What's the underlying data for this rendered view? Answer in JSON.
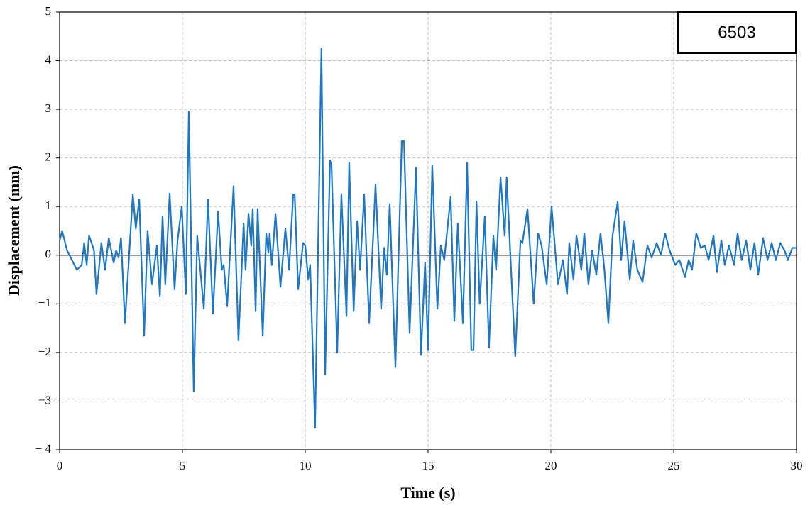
{
  "chart_data": {
    "type": "line",
    "annotation": "6503",
    "xlabel": "Time (s)",
    "ylabel": "Displacement (mm)",
    "xlim": [
      0,
      30
    ],
    "xticks": [
      0,
      5,
      10,
      15,
      20,
      25,
      30
    ],
    "ylim": [
      -4,
      5
    ],
    "yticks": [
      {
        "value": -4,
        "label": "− 4"
      },
      {
        "value": -3,
        "label": "−3"
      },
      {
        "value": -2,
        "label": "−2"
      },
      {
        "value": -1,
        "label": "−1"
      },
      0,
      1,
      2,
      3,
      4,
      5
    ],
    "grid": true,
    "series": [
      {
        "name": "6503",
        "color": "#1f77c4",
        "x": [
          0,
          0.1,
          0.3,
          0.7,
          0.9,
          1.0,
          1.1,
          1.2,
          1.4,
          1.5,
          1.7,
          1.85,
          2.0,
          2.2,
          2.3,
          2.4,
          2.5,
          2.66,
          2.98,
          3.1,
          3.24,
          3.44,
          3.58,
          3.76,
          3.96,
          4.08,
          4.19,
          4.3,
          4.48,
          4.68,
          4.8,
          4.97,
          5.14,
          5.26,
          5.46,
          5.6,
          5.87,
          6.04,
          6.24,
          6.45,
          6.6,
          6.68,
          6.82,
          7.08,
          7.28,
          7.49,
          7.57,
          7.69,
          7.8,
          7.86,
          7.98,
          8.06,
          8.27,
          8.41,
          8.5,
          8.55,
          8.64,
          8.79,
          8.99,
          9.19,
          9.34,
          9.51,
          9.57,
          9.71,
          9.91,
          10.0,
          10.12,
          10.2,
          10.4,
          10.66,
          10.81,
          11.01,
          11.07,
          11.3,
          11.47,
          11.68,
          11.79,
          11.97,
          12.11,
          12.23,
          12.4,
          12.6,
          12.86,
          13.09,
          13.21,
          13.32,
          13.44,
          13.67,
          13.93,
          14.02,
          14.25,
          14.51,
          14.71,
          14.88,
          15.0,
          15.17,
          15.38,
          15.52,
          15.66,
          15.92,
          16.07,
          16.21,
          16.42,
          16.59,
          16.76,
          16.85,
          16.97,
          17.1,
          17.31,
          17.48,
          17.66,
          17.77,
          17.95,
          18.12,
          18.2,
          18.55,
          18.76,
          18.84,
          19.05,
          19.3,
          19.48,
          19.62,
          19.83,
          20.03,
          20.29,
          20.49,
          20.66,
          20.75,
          20.92,
          21.04,
          21.24,
          21.36,
          21.53,
          21.68,
          21.85,
          22.02,
          22.17,
          22.34,
          22.51,
          22.72,
          22.86,
          23.0,
          23.21,
          23.35,
          23.52,
          23.73,
          23.93,
          24.1,
          24.31,
          24.48,
          24.65,
          24.83,
          25.06,
          25.23,
          25.46,
          25.61,
          25.75,
          25.92,
          26.1,
          26.27,
          26.42,
          26.62,
          26.76,
          26.94,
          27.08,
          27.25,
          27.46,
          27.6,
          27.77,
          27.95,
          28.12,
          28.29,
          28.44,
          28.64,
          28.82,
          28.99,
          29.16,
          29.34,
          29.51,
          29.65,
          29.83,
          30.0
        ],
        "values": [
          0.3,
          0.5,
          0.1,
          -0.3,
          -0.2,
          0.25,
          -0.2,
          0.4,
          0.1,
          -0.8,
          0.25,
          -0.3,
          0.35,
          -0.15,
          0.1,
          -0.05,
          0.35,
          -1.4,
          1.25,
          0.55,
          1.15,
          -1.65,
          0.5,
          -0.6,
          0.2,
          -0.85,
          0.8,
          -0.6,
          1.27,
          -0.7,
          0.3,
          1.0,
          -0.8,
          2.95,
          -2.8,
          0.4,
          -1.1,
          1.15,
          -1.2,
          0.9,
          -0.3,
          -0.2,
          -1.05,
          1.42,
          -1.75,
          0.65,
          -0.3,
          0.85,
          0.2,
          0.95,
          -1.15,
          0.95,
          -1.65,
          0.45,
          0.05,
          0.45,
          -0.2,
          0.85,
          -0.65,
          0.55,
          -0.3,
          1.25,
          1.25,
          -0.7,
          0.25,
          0.2,
          -0.5,
          -0.2,
          -3.55,
          4.25,
          -2.45,
          1.95,
          1.85,
          -2.0,
          1.25,
          -1.25,
          1.9,
          -1.15,
          0.7,
          -0.3,
          1.25,
          -1.4,
          1.45,
          -1.1,
          0.15,
          -0.4,
          1.05,
          -2.3,
          2.35,
          2.35,
          -1.6,
          1.8,
          -2.05,
          -0.15,
          -1.95,
          1.85,
          -1.1,
          0.2,
          -0.1,
          1.2,
          -1.35,
          0.65,
          -1.4,
          1.9,
          -1.95,
          -1.95,
          1.1,
          -1.0,
          0.8,
          -1.9,
          0.4,
          -0.3,
          1.6,
          0.4,
          1.6,
          -2.08,
          0.3,
          0.25,
          0.95,
          -1.0,
          0.45,
          0.2,
          -0.6,
          1.0,
          -0.6,
          -0.1,
          -0.8,
          0.25,
          -0.5,
          0.4,
          -0.3,
          0.45,
          -0.6,
          0.1,
          -0.4,
          0.45,
          -0.25,
          -1.4,
          0.4,
          1.1,
          -0.1,
          0.7,
          -0.5,
          0.3,
          -0.3,
          -0.55,
          0.2,
          -0.05,
          0.25,
          0.0,
          0.45,
          0.1,
          -0.2,
          -0.1,
          -0.45,
          -0.1,
          -0.3,
          0.45,
          0.15,
          0.2,
          -0.1,
          0.4,
          -0.35,
          0.3,
          -0.2,
          0.2,
          -0.2,
          0.45,
          -0.1,
          0.3,
          -0.3,
          0.25,
          -0.4,
          0.35,
          -0.1,
          0.25,
          -0.1,
          0.25,
          0.1,
          -0.1,
          0.15,
          0.15
        ]
      }
    ]
  }
}
